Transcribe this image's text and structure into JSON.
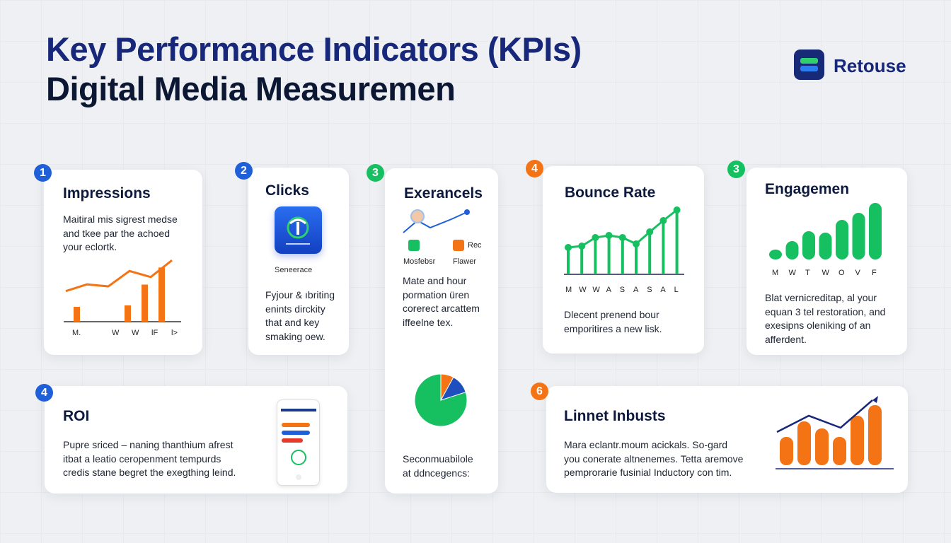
{
  "header": {
    "line1": "Key Performance Indicators (KPIs)",
    "line2": "Digital Media Measuremen"
  },
  "brand": {
    "name": "Retouse"
  },
  "colors": {
    "navy": "#17277a",
    "blue": "#1f5fd8",
    "green": "#16c060",
    "orange": "#f47415"
  },
  "cards": [
    {
      "badge": "1",
      "badge_color": "#1f5fd8",
      "title": "Impressions",
      "text": [
        "Maitiral mis sigrest medse",
        "and tkee par the achoed",
        "your eclortk."
      ],
      "chart": {
        "type": "bar+line",
        "categories": [
          "M.",
          "",
          "W",
          "W",
          "lF",
          "l>"
        ],
        "bars": [
          2,
          0,
          0,
          2.2,
          5,
          7.3
        ],
        "line": [
          3,
          4,
          3.7,
          6,
          5.1,
          7.6
        ]
      }
    },
    {
      "badge": "2",
      "badge_color": "#1f5fd8",
      "title": "Clicks",
      "icon_caption": "Seneerace",
      "text": [
        "Fyjour & ıbriting",
        "enints dirckity",
        "that and key",
        "smaking oew."
      ]
    },
    {
      "badge": "3",
      "badge_color": "#16c060",
      "title": "Exerancels",
      "legend": [
        "Mosfebsr",
        "Flawer"
      ],
      "legend_extra": "Rec",
      "text": [
        "Mate and hour",
        "pormation üren",
        "corerect arcattem",
        "iffeelne tex."
      ],
      "pie": {
        "values": [
          80,
          8,
          12
        ],
        "colors": [
          "#16c060",
          "#f47415",
          "#1f4fbf"
        ]
      },
      "footer": [
        "Seconmuabilole",
        "at ddncegencs:"
      ]
    },
    {
      "badge": "4",
      "badge_color": "#f47415",
      "title": "Bounce Rate",
      "text": [
        "Dlecent prenend bour",
        "emporitires a new lisk."
      ],
      "chart": {
        "type": "lollipop",
        "categories": [
          "M",
          "W",
          "W",
          "A",
          "S",
          "A",
          "S",
          "A",
          "L"
        ],
        "values": [
          38,
          40,
          52,
          55,
          52,
          43,
          60,
          76,
          91
        ]
      }
    },
    {
      "badge": "3",
      "badge_color": "#16c060",
      "title": "Engagemen",
      "text": [
        "Blat vernicreditap, al your",
        "equan 3 tel restoration, and",
        "exesipns oleniking of an",
        "afferdent."
      ],
      "chart": {
        "type": "bar",
        "categories": [
          "M",
          "W",
          "T",
          "W",
          "O",
          "V",
          "F"
        ],
        "values": [
          14,
          26,
          40,
          38,
          56,
          66,
          80
        ]
      }
    },
    {
      "badge": "4",
      "badge_color": "#1f5fd8",
      "title": "ROI",
      "text": [
        "Pupre sriced – naning thanthium afrest",
        "itbat a leatio ceropenment tempurds",
        "credis stane begret the exegthing leind."
      ]
    },
    {
      "badge": "6",
      "badge_color": "#f47415",
      "title": "Linnet Inbusts",
      "text": [
        "Mara eclantr.moum acickals. So-gard",
        "you conerate altnenemes. Tetta aremove",
        "pemprorarie fusinial Inductory con tim."
      ],
      "chart": {
        "type": "bar+trend",
        "values": [
          40,
          62,
          52,
          40,
          70,
          85
        ],
        "trend": [
          52,
          75,
          58,
          97
        ]
      }
    }
  ]
}
